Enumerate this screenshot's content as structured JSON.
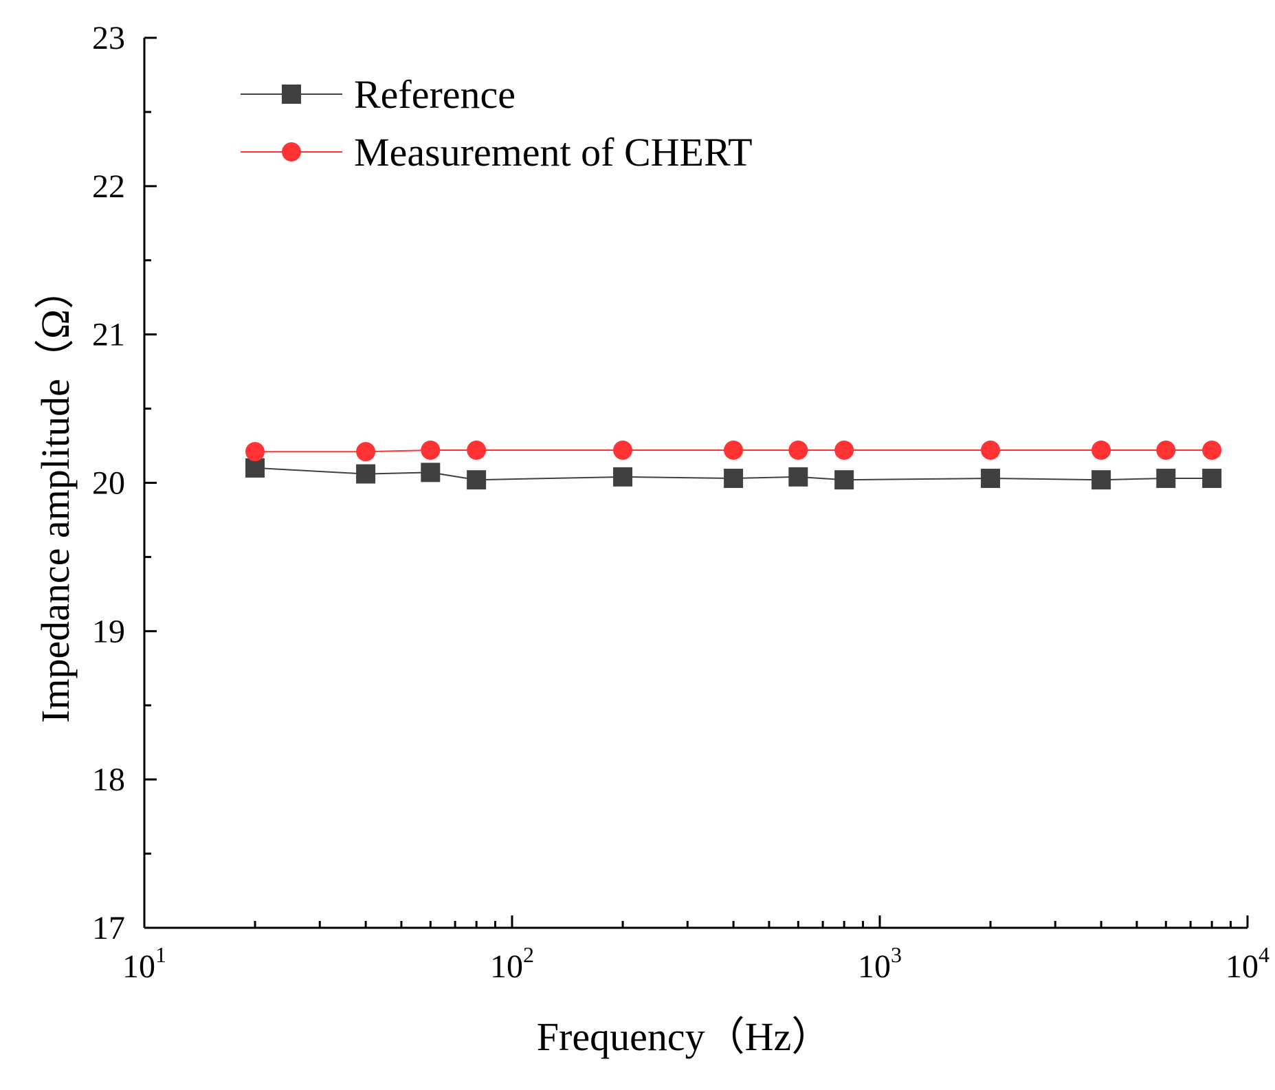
{
  "chart_data": {
    "type": "line",
    "title": "",
    "xlabel": "Frequency（Hz）",
    "ylabel": "Impedance amplitude（Ω）",
    "xscale": "log",
    "xlim": [
      10,
      10000
    ],
    "ylim": [
      17,
      23
    ],
    "y_ticks": [
      "17",
      "18",
      "19",
      "20",
      "21",
      "22",
      "23"
    ],
    "x_ticks": [
      {
        "base": "10",
        "exp": "1"
      },
      {
        "base": "10",
        "exp": "2"
      },
      {
        "base": "10",
        "exp": "3"
      },
      {
        "base": "10",
        "exp": "4"
      }
    ],
    "grid": false,
    "legend_position": "top-left",
    "series": [
      {
        "name": "Reference",
        "color": "#404040",
        "marker": "square",
        "x": [
          20,
          40,
          60,
          80,
          200,
          400,
          600,
          800,
          2000,
          4000,
          6000,
          8000
        ],
        "y": [
          20.1,
          20.06,
          20.07,
          20.02,
          20.04,
          20.03,
          20.04,
          20.02,
          20.03,
          20.02,
          20.03,
          20.03
        ]
      },
      {
        "name": "Measurement of CHERT",
        "color": "#ff3333",
        "marker": "circle",
        "x": [
          20,
          40,
          60,
          80,
          200,
          400,
          600,
          800,
          2000,
          4000,
          6000,
          8000
        ],
        "y": [
          20.21,
          20.21,
          20.22,
          20.22,
          20.22,
          20.22,
          20.22,
          20.22,
          20.22,
          20.22,
          20.22,
          20.22
        ]
      }
    ]
  }
}
